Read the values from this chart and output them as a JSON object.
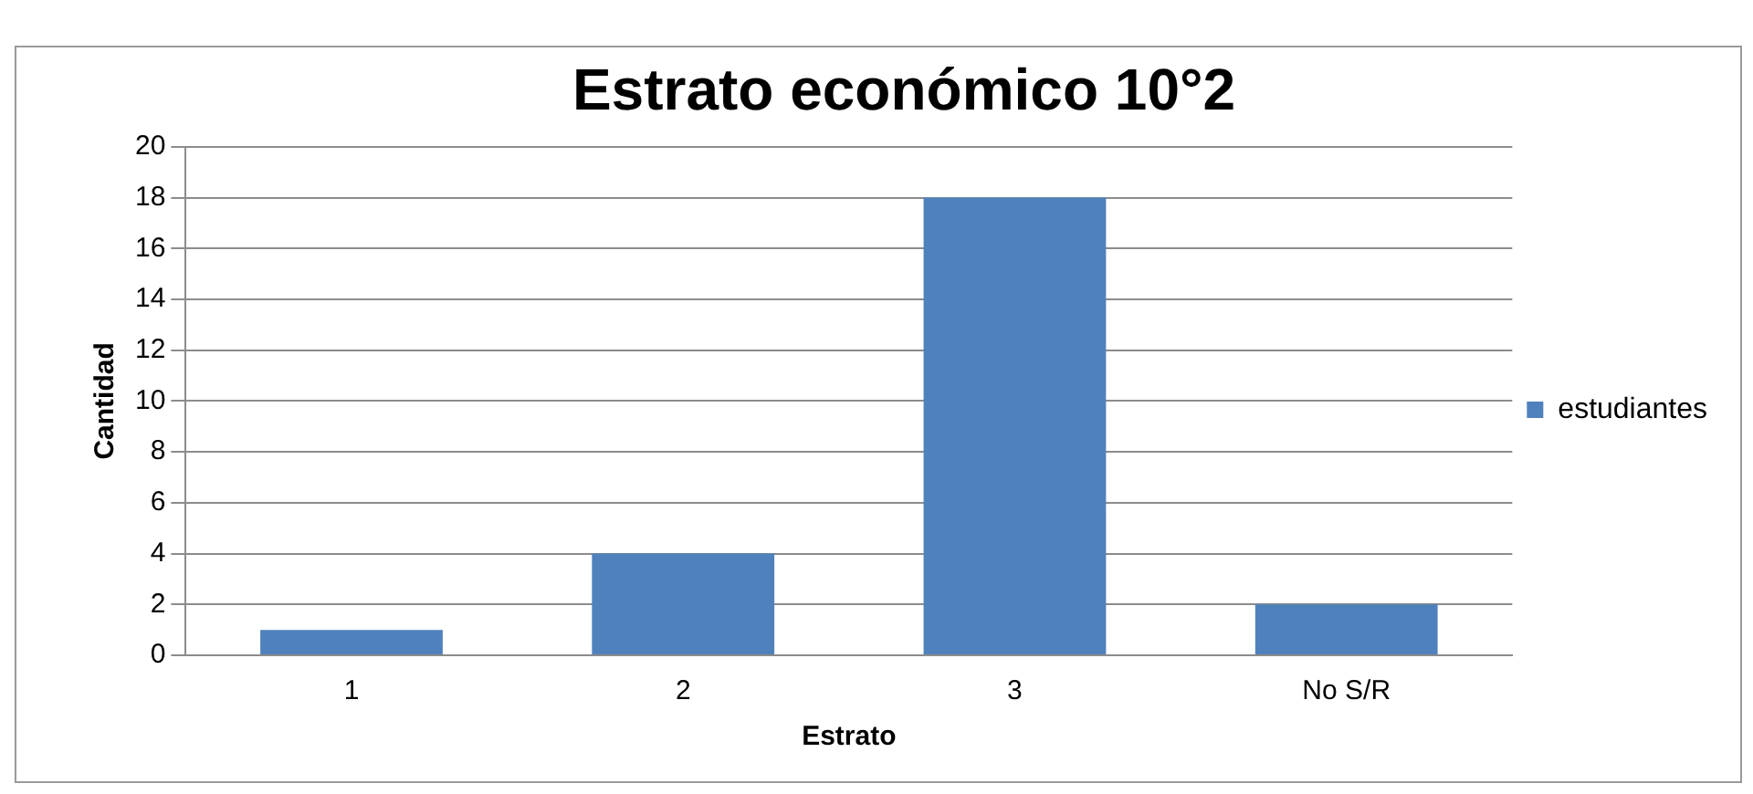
{
  "chart_data": {
    "type": "bar",
    "title": "Estrato económico 10°2",
    "xlabel": "Estrato",
    "ylabel": "Cantidad",
    "categories": [
      "1",
      "2",
      "3",
      "No S/R"
    ],
    "series": [
      {
        "name": "estudiantes",
        "color": "#4f81bd",
        "values": [
          1,
          4,
          18,
          2
        ]
      }
    ],
    "ylim": [
      0,
      20
    ],
    "yticks": [
      0,
      2,
      4,
      6,
      8,
      10,
      12,
      14,
      16,
      18,
      20
    ],
    "grid": "y",
    "legend": "right"
  }
}
